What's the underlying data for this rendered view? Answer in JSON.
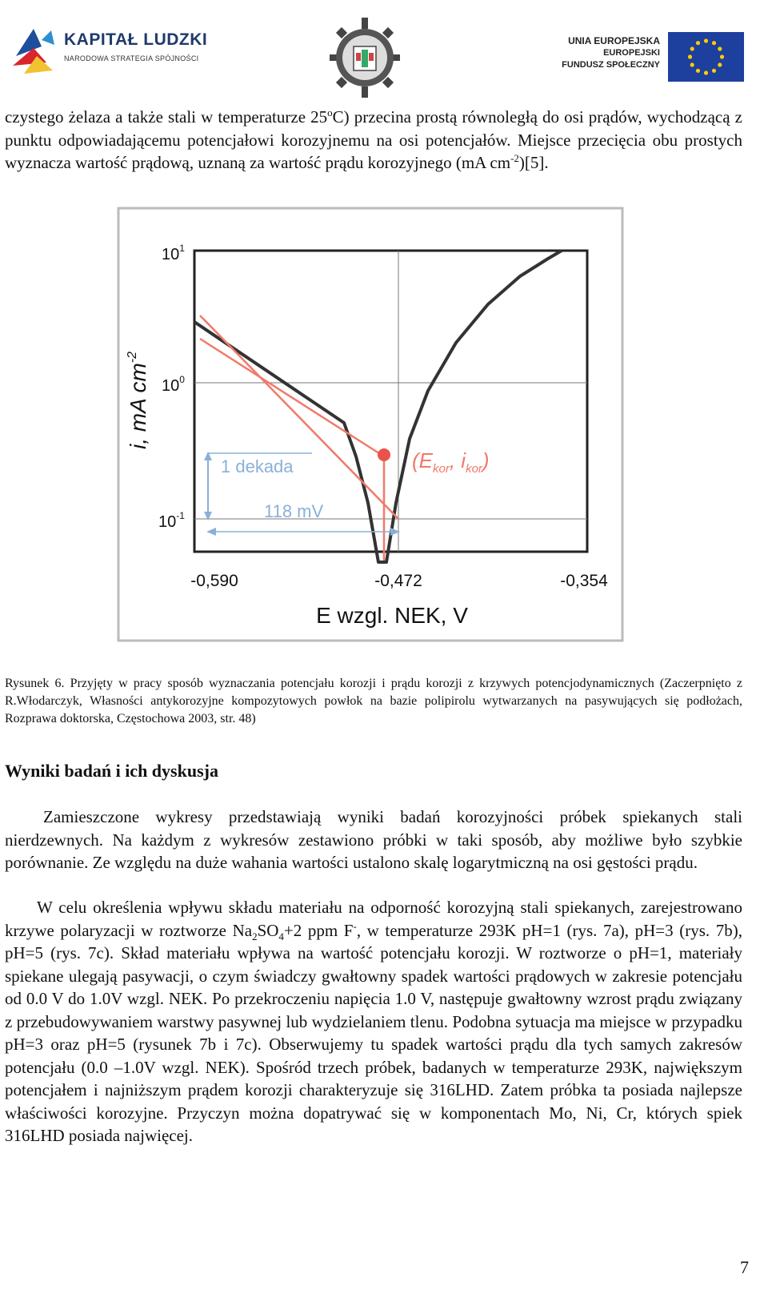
{
  "header": {
    "left_logo_title": "KAPITAŁ LUDZKI",
    "left_logo_subtitle": "NARODOWA STRATEGIA SPÓJNOŚCI",
    "right_logo_line1": "UNIA EUROPEJSKA",
    "right_logo_line2": "EUROPEJSKI",
    "right_logo_line3": "FUNDUSZ SPOŁECZNY"
  },
  "top_paragraph": {
    "part1": "czystego żelaza a także stali w temperaturze 25",
    "sup1": "o",
    "part2": "C) przecina prostą równoległą do osi prądów, wychodzącą z punktu odpowiadającemu potencjałowi korozyjnemu na osi potencjałów. Miejsce przecięcia obu prostych wyznacza wartość prądową, uznaną za wartość prądu korozyjnego (mA cm",
    "sup2": "-2",
    "part3": ")[5]."
  },
  "figure": {
    "y_label_main": "i, mA cm",
    "y_label_sup": "-2",
    "y_ticks": [
      {
        "base": "10",
        "exp": "1"
      },
      {
        "base": "10",
        "exp": "0"
      },
      {
        "base": "10",
        "exp": "-1"
      }
    ],
    "x_ticks": [
      "-0,590",
      "-0,472",
      "-0,354"
    ],
    "x_label": "E wzgl. NEK, V",
    "annotation_decade": "1 dekada",
    "annotation_mv": "118 mV",
    "annotation_point_open": "(E",
    "annotation_point_sub1": "kor",
    "annotation_point_mid": ", i",
    "annotation_point_sub2": "kor",
    "annotation_point_close": ")",
    "colors": {
      "curve": "#333333",
      "tangent": "#f07a6a",
      "marker": "#e8544a",
      "annotation": "#8ab0d8",
      "frame_outer": "#bbbbbb"
    }
  },
  "caption": "Rysunek 6. Przyjęty w pracy sposób wyznaczania potencjału korozji i prądu korozji z krzywych potencjodynamicznych (Zaczerpnięto z R.Włodarczyk, Własności antykorozyjne kompozytowych powłok na bazie polipirolu wytwarzanych na pasywujących się podłożach, Rozprawa doktorska, Częstochowa 2003, str. 48)",
  "section_title": "Wyniki badań i ich dyskusja",
  "paragraph1": "Zamieszczone wykresy przedstawiają wyniki badań korozyjności próbek spiekanych stali nierdzewnych. Na każdym z wykresów zestawiono próbki w taki sposób, aby możliwe było szybkie porównanie. Ze względu na duże wahania wartości ustalono skalę logarytmiczną na osi gęstości prądu.",
  "paragraph2": {
    "part1": "W celu określenia wpływu składu materiału na odporność korozyjną stali spiekanych, zarejestrowano krzywe polaryzacji w roztworze Na",
    "sub1": "2",
    "part2": "SO",
    "sub2": "4",
    "part3": "+2 ppm F",
    "sup1": "-",
    "part4": ", w temperaturze 293K pH=1 (rys. 7a), pH=3 (rys. 7b), pH=5 (rys. 7c). Skład materiału wpływa na wartość potencjału korozji. W roztworze o pH=1, materiały spiekane ulegają pasywacji, o czym świadczy gwałtowny spadek wartości prądowych w zakresie potencjału od 0.0 V do 1.0V wzgl. NEK. Po przekroczeniu napięcia 1.0 V, następuje gwałtowny wzrost prądu związany z przebudowywaniem warstwy pasywnej lub wydzielaniem tlenu. Podobna sytuacja ma miejsce w przypadku pH=3 oraz pH=5 (rysunek 7b i 7c). Obserwujemy tu spadek wartości prądu dla tych samych zakresów potencjału (0.0 –1.0V wzgl. NEK). Spośród trzech próbek, badanych w temperaturze 293K, największym potencjałem i najniższym prądem korozji charakteryzuje się 316LHD. Zatem próbka ta posiada najlepsze właściwości korozyjne. Przyczyn można dopatrywać się w komponentach Mo, Ni, Cr, których spiek 316LHD posiada najwięcej."
  },
  "page_number": "7"
}
